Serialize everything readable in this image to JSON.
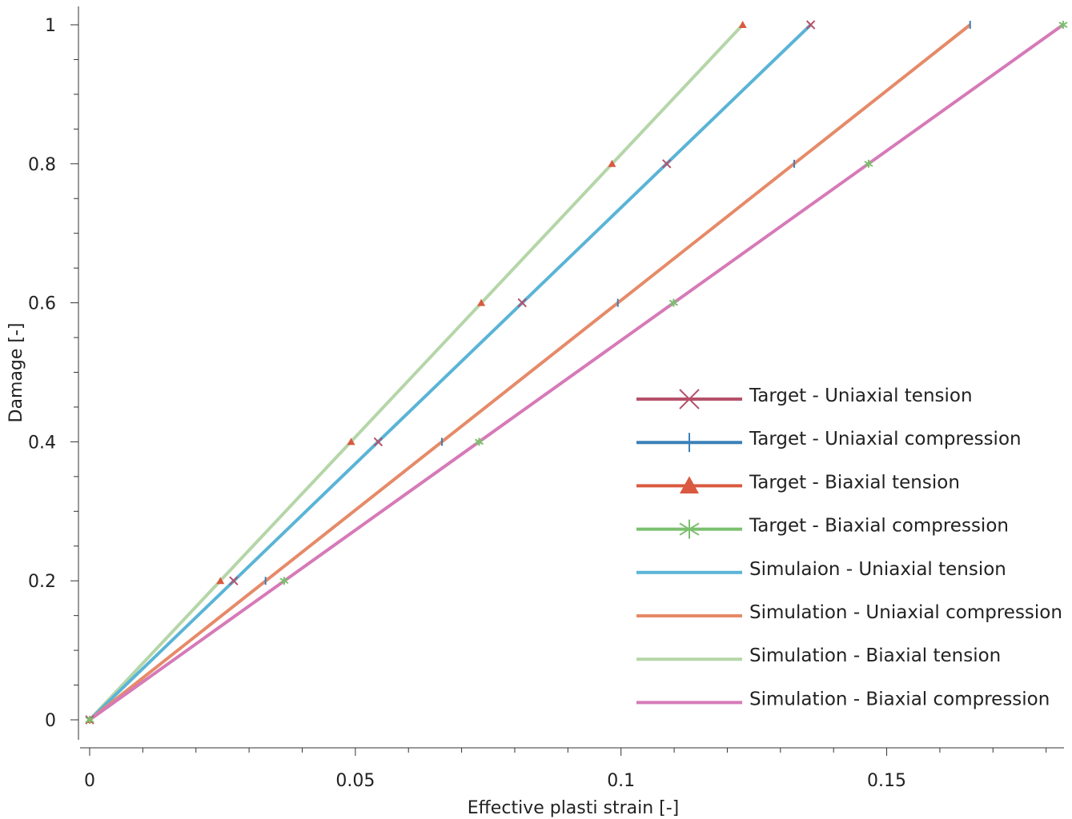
{
  "chart_data": {
    "type": "line",
    "xlabel": "Effective plasti strain [-]",
    "ylabel": "Damage [-]",
    "xlim": [
      0,
      0.1834
    ],
    "ylim": [
      0,
      1
    ],
    "xticks": [
      0,
      0.05,
      0.1,
      0.15
    ],
    "xtick_labels": [
      "0",
      "0.05",
      "0.1",
      "0.15"
    ],
    "yticks": [
      0,
      0.2,
      0.4,
      0.6,
      0.8,
      1
    ],
    "ytick_labels": [
      "0",
      "0.2",
      "0.4",
      "0.6",
      "0.8",
      "1"
    ],
    "grid": false,
    "legend_position": "lower-right",
    "series": [
      {
        "name": "Target - Uniaxial tension",
        "color": "#b5506b",
        "marker": "x",
        "line": false,
        "x": [
          0,
          0.0271,
          0.0543,
          0.0814,
          0.1086,
          0.1357
        ],
        "y": [
          0,
          0.2,
          0.4,
          0.6,
          0.8,
          1
        ]
      },
      {
        "name": "Target - Uniaxial compression",
        "color": "#3b80b8",
        "marker": "|",
        "line": false,
        "x": [
          0,
          0.0331,
          0.0663,
          0.0994,
          0.1326,
          0.1657
        ],
        "y": [
          0,
          0.2,
          0.4,
          0.6,
          0.8,
          1
        ]
      },
      {
        "name": "Target - Biaxial tension",
        "color": "#d95a40",
        "marker": "triangle",
        "line": false,
        "x": [
          0,
          0.0246,
          0.0492,
          0.0737,
          0.0983,
          0.1229
        ],
        "y": [
          0,
          0.2,
          0.4,
          0.6,
          0.8,
          1
        ]
      },
      {
        "name": "Target - Biaxial compression",
        "color": "#7bbf6f",
        "marker": "asterisk",
        "line": false,
        "x": [
          0,
          0.0366,
          0.0733,
          0.1099,
          0.1466,
          0.1832
        ],
        "y": [
          0,
          0.2,
          0.4,
          0.6,
          0.8,
          1
        ]
      },
      {
        "name": "Simulaion - Uniaxial tension",
        "color": "#5ab4d6",
        "marker": "none",
        "line": true,
        "x": [
          0,
          0.1357
        ],
        "y": [
          0,
          1
        ]
      },
      {
        "name": "Simulation - Uniaxial compression",
        "color": "#e68a68",
        "marker": "none",
        "line": true,
        "x": [
          0,
          0.1657
        ],
        "y": [
          0,
          1
        ]
      },
      {
        "name": "Simulation - Biaxial tension",
        "color": "#b5d6a8",
        "marker": "none",
        "line": true,
        "x": [
          0,
          0.1229
        ],
        "y": [
          0,
          1
        ]
      },
      {
        "name": "Simulation - Biaxial compression",
        "color": "#d67ab8",
        "marker": "none",
        "line": true,
        "x": [
          0,
          0.1832
        ],
        "y": [
          0,
          1
        ]
      }
    ]
  }
}
